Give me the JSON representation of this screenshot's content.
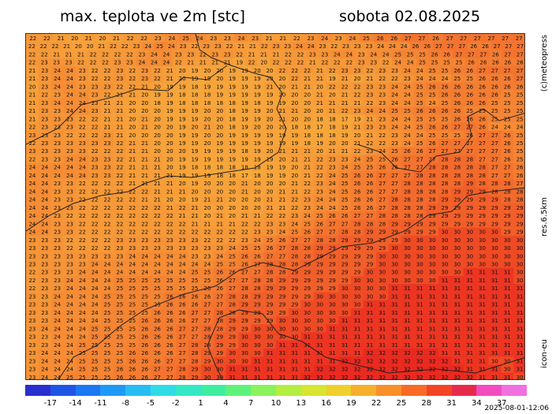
{
  "title_left": "max. teplota ve 2m [stc]",
  "title_right": "sobota 02.08.2025",
  "side_credit": "(c)meteopress",
  "side_resolution": "res.6.5km",
  "side_model": "icon-eu",
  "timestamp": "2025-08-01-12:06",
  "legend": {
    "ticks": [
      "-17",
      "-14",
      "-11",
      "-8",
      "-5",
      "-2",
      "1",
      "4",
      "7",
      "10",
      "13",
      "16",
      "19",
      "22",
      "25",
      "28",
      "31",
      "34",
      "37"
    ],
    "colors": [
      "#2a2fd0",
      "#1f55e6",
      "#1c77f2",
      "#1e9af6",
      "#27bdf3",
      "#30dbe6",
      "#34e8c6",
      "#3deea0",
      "#5ff27a",
      "#8af25a",
      "#b4ee40",
      "#d8e431",
      "#f0d02c",
      "#f6b02b",
      "#f8902a",
      "#f76b27",
      "#f24424",
      "#e82a4a",
      "#f24cc0",
      "#f070e0"
    ]
  },
  "map_data": {
    "type": "temperature-grid",
    "rows": [
      "22 22 21 20 21 20 21 22 22 23 24 25 24 23 23 24 23 21 21 22 23 24 23 24 25 26 26 27 27 26 27 27 27 27 27 27",
      "22 22 22 21 20 20 21 22 22 23 24 25 24 23 22 23 23 22 21 21 22 23 23 24 24 23 22 23 23 23 24 24 24 26 26 27 27 27 26 26 27 27 27",
      "22 22 21 21 21 22 22 22 22 23 24 24 23 23 22 23 23 22 21 21 21 22 22 23 23 24 24 23 24 24 25 25 25 26 26 27 27 27 26 27 27",
      "22 23 23 23 22 22 22 23 23 24 24 24 22 21 21 21 21 19 22 20 22 22 22 21 22 22 22 23 23 22 24 24 25 25 25 25 26 26 26 26 26",
      "21 23 24 24 23 22 22 23 22 23 22 21 20 19 20 20 19 19 20 20 22 22 22 21 22 23 23 22 23 23 24 24 25 25 26 26 27 27 27 27",
      "21 23 24 24 23 22 22 23 22 23 22 21 20 19 19 20 19 19 19 20 20 22 21 21 19 21 20 21 22 22 23 24 24 24 25 25 26 26 26 27",
      "20 23 24 24 23 23 23 22 22 21 20 19 19 18 19 19 19 19 19 21 20 21 21 20 22 22 22 23 23 24 24 25 26 26 26 26 26 26 26 26",
      "21 22 23 24 24 23 22 21 21 20 19 19 18 18 18 19 19 19 19 19 20 20 20 21 20 21 22 23 23 24 24 25 25 26 26 26 26 26 25 25",
      "21 23 24 24 24 23 21 21 20 20 18 19 18 18 18 18 18 19 18 19 19 20 20 21 21 21 21 22 23 24 24 25 24 25 26 26 26 25 25 25",
      "21 23 23 24 24 23 21 21 20 20 20 19 19 19 20 20 18 19 19 20 21 21 20 20 21 22 23 24 24 25 25 26 26 26 26 25 25 25 25 25",
      "21 23 23 23 22 22 21 21 20 21 20 19 19 19 20 20 18 19 19 20 21 20 20 18 18 17 19 21 23 24 24 25 25 25 26 26 26 25 25 25",
      "22 23 23 23 22 22 21 21 20 21 20 20 19 20 21 20 18 19 20 20 20 18 18 17 18 19 21 23 23 24 24 25 26 26 27 27 26 24 24 24",
      "23 23 23 22 22 22 23 21 20 20 20 20 19 19 20 20 19 19 19 19 19 19 18 18 18 19 20 21 22 23 24 24 25 25 25 26 27 27 26 25",
      "22 23 23 23 23 23 23 22 21 21 20 20 19 19 20 19 19 19 19 19 19 19 18 19 20 20 21 22 22 23 24 25 26 27 27 27 27 27 26 25",
      "23 23 23 23 23 22 22 22 21 21 20 20 20 19 19 19 19 18 19 20 21 21 21 20 21 21 22 23 24 25 26 26 27 27 27 27 27 27 26 25",
      "22 23 23 24 24 23 23 22 21 21 21 20 19 19 19 19 19 19 19 19 20 21 21 22 23 23 24 25 25 26 27 27 27 28 28 28 27 27 26 25",
      "24 24 24 24 24 23 23 22 21 21 21 20 19 18 18 18 18 18 18 19 19 20 21 22 23 24 25 25 26 26 27 27 28 28 28 28 28 27 27 26",
      "24 24 24 24 24 23 23 22 21 21 21 21 19 19 19 18 18 17 18 19 19 20 21 22 24 25 26 26 27 27 27 28 28 28 28 28 28 27 27 26",
      "24 24 23 23 22 22 22 22 21 21 21 21 20 19 20 20 20 21 20 20 20 21 22 23 24 25 26 26 27 27 28 28 28 28 28 29 28 28 28 27",
      "24 24 23 23 22 22 22 22 22 22 21 21 21 20 20 20 20 21 20 20 21 21 22 23 24 25 26 26 27 27 28 28 28 28 29 29 29 28 28 28",
      "24 24 23 23 22 22 22 22 22 21 21 20 20 19 21 21 20 20 20 21 21 22 23 24 24 25 26 26 27 28 28 28 28 29 29 29 29 29 28 28",
      "24 24 23 23 22 22 22 22 22 22 22 21 22 21 20 20 20 20 20 21 21 22 23 24 24 25 26 26 27 28 28 28 29 29 29 29 29 29 29 29",
      "24 24 23 22 22 22 22 22 22 22 22 22 21 21 20 21 20 21 21 22 22 23 24 25 26 26 27 27 28 28 28 28 29 29 29 29 29 29 29 29",
      "24 24 23 23 22 22 22 22 22 22 22 22 22 21 21 21 21 22 22 23 23 24 25 26 27 27 28 28 28 29 29 29 29 29 29 29 29 29 29 29",
      "24 24 23 23 22 22 22 22 22 22 22 22 22 22 22 22 22 22 23 23 24 25 26 27 27 28 28 29 29 29 29 29 29 30 30 30 30 30 29 29",
      "23 23 23 22 22 22 22 23 23 23 23 23 23 23 22 22 22 23 24 25 26 27 27 28 28 29 29 29 29 29 30 30 30 30 30 30 30 30 30 30",
      "23 23 23 22 22 22 22 23 23 23 23 23 23 23 23 23 24 25 25 26 27 28 28 29 29 29 29 29 29 30 30 30 30 30 30 30 30 30 30 30",
      "23 23 23 23 23 23 23 23 24 24 24 24 24 23 23 24 25 26 26 27 27 28 28 29 29 29 29 29 30 30 30 30 30 30 30 30 30 30 30 30",
      "23 23 23 23 23 24 24 24 24 24 24 24 24 24 24 25 25 26 27 28 28 28 29 29 29 29 29 29 30 30 30 30 30 30 30 30 30 30 30 30",
      "22 23 23 23 24 24 24 24 24 24 24 24 24 25 25 26 26 27 27 28 28 29 29 29 29 29 29 30 30 30 30 30 30 30 30 31 31 31 31 30",
      "22 23 23 24 24 24 24 25 25 25 25 25 25 25 25 26 27 27 28 28 29 29 29 29 29 29 30 30 30 30 30 30 30 31 31 31 31 31 31 30",
      "22 23 23 24 24 24 24 25 25 25 25 25 25 25 26 26 27 28 28 29 29 29 29 29 29 30 30 30 30 31 31 31 31 31 31 31 31 31 31 31",
      "23 23 24 24 24 24 25 25 25 25 25 26 26 26 26 27 28 28 29 29 29 29 29 30 30 30 30 30 30 31 31 31 31 31 31 31 31 31 31 31",
      "23 23 24 24 24 24 25 25 25 25 25 26 26 26 27 27 28 29 29 29 29 29 30 30 30 30 30 31 31 31 31 31 31 31 31 31 31 31 31 31",
      "23 23 24 24 24 24 25 25 25 25 26 26 26 27 27 28 28 29 29 29 29 30 30 30 30 30 31 31 31 31 31 31 31 31 31 31 31 31 31 31",
      "23 23 24 24 24 24 25 25 25 26 26 26 26 27 27 28 29 29 29 29 30 30 30 30 30 31 31 31 31 31 31 31 31 31 31 31 31 31 31 31",
      "23 24 24 24 24 25 25 25 25 26 26 26 27 27 28 28 29 29 30 30 30 30 30 30 31 31 31 31 31 31 31 31 31 31 31 31 31 31 31 31",
      "23 23 24 24 24 25 25 25 25 26 26 26 27 27 28 29 29 30 30 30 30 30 31 31 31 31 31 31 31 31 31 31 31 31 31 31 31 31 31 31",
      "23 23 24 24 25 25 25 25 25 26 26 26 27 28 28 29 29 30 30 30 31 31 31 31 31 31 31 31 31 31 31 31 31 31 31 31 31 31 31 31",
      "23 24 24 24 25 25 25 25 26 26 26 26 27 28 29 29 30 30 30 31 31 31 31 31 31 31 31 32 32 32 32 32 32 31 31 31 31 31 31 31",
      "23 24 24 24 25 25 25 25 26 26 26 27 27 28 29 30 30 30 31 31 31 31 31 31 31 32 32 32 32 32 32 32 32 32 31 31 31 30 30 31",
      "23 24 24 24 25 25 25 26 26 26 27 27 28 29 30 30 31 31 31 31 31 31 31 32 32 32 32 32 32 32 32 32 32 32 32 31 31 31 30 31",
      "23 24 24 25 25 25 25 26 26 26 27 27 28 29 30 30 31 31 31 31 31 31 32 32 32 32 32 32 32 32 32 32 32 32 32 32 31 31 31 30"
    ]
  }
}
